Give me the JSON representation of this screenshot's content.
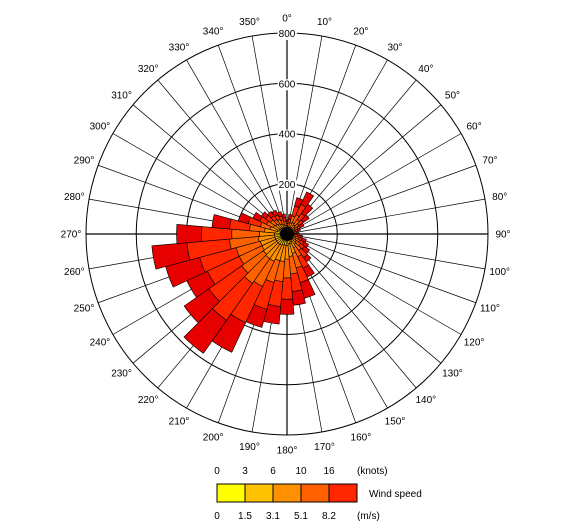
{
  "chart_data": {
    "type": "wind-rose",
    "direction_labels": [
      "0°",
      "10°",
      "20°",
      "30°",
      "40°",
      "50°",
      "60°",
      "70°",
      "80°",
      "90°",
      "100°",
      "110°",
      "120°",
      "130°",
      "140°",
      "150°",
      "160°",
      "170°",
      "180°",
      "190°",
      "200°",
      "210°",
      "220°",
      "230°",
      "240°",
      "250°",
      "260°",
      "270°",
      "280°",
      "290°",
      "300°",
      "310°",
      "320°",
      "330°",
      "340°",
      "350°"
    ],
    "radial_ticks": [
      200,
      400,
      600,
      800
    ],
    "radial_tick_labels": [
      "200",
      "400",
      "600",
      "800"
    ],
    "rmax": 800,
    "sector_width_deg": 10,
    "bin_colors": [
      "#ffff00",
      "#ffc200",
      "#ff9100",
      "#ff6000",
      "#ff2600",
      "#e60000"
    ],
    "sectors": [
      {
        "dir": 0,
        "cum": [
          12,
          22,
          34,
          42,
          50,
          56
        ]
      },
      {
        "dir": 10,
        "cum": [
          12,
          22,
          32,
          45,
          60,
          78
        ]
      },
      {
        "dir": 20,
        "cum": [
          14,
          28,
          45,
          75,
          115,
          150
        ]
      },
      {
        "dir": 30,
        "cum": [
          14,
          28,
          50,
          85,
          130,
          185
        ]
      },
      {
        "dir": 40,
        "cum": [
          14,
          28,
          45,
          70,
          100,
          145
        ]
      },
      {
        "dir": 50,
        "cum": [
          14,
          26,
          40,
          58,
          80,
          108
        ]
      },
      {
        "dir": 60,
        "cum": [
          12,
          22,
          34,
          48,
          60,
          75
        ]
      },
      {
        "dir": 70,
        "cum": [
          12,
          20,
          28,
          36,
          45,
          55
        ]
      },
      {
        "dir": 80,
        "cum": [
          10,
          18,
          25,
          32,
          38,
          45
        ]
      },
      {
        "dir": 90,
        "cum": [
          10,
          18,
          25,
          32,
          40,
          48
        ]
      },
      {
        "dir": 100,
        "cum": [
          12,
          22,
          32,
          42,
          52,
          62
        ]
      },
      {
        "dir": 110,
        "cum": [
          12,
          22,
          34,
          48,
          62,
          80
        ]
      },
      {
        "dir": 120,
        "cum": [
          14,
          26,
          40,
          56,
          75,
          95
        ]
      },
      {
        "dir": 130,
        "cum": [
          14,
          28,
          45,
          65,
          85,
          110
        ]
      },
      {
        "dir": 140,
        "cum": [
          14,
          28,
          50,
          80,
          115,
          135
        ]
      },
      {
        "dir": 150,
        "cum": [
          16,
          35,
          60,
          100,
          150,
          190
        ]
      },
      {
        "dir": 160,
        "cum": [
          16,
          40,
          80,
          140,
          200,
          265
        ]
      },
      {
        "dir": 170,
        "cum": [
          16,
          40,
          90,
          160,
          230,
          285
        ]
      },
      {
        "dir": 180,
        "cum": [
          18,
          45,
          100,
          175,
          260,
          320
        ]
      },
      {
        "dir": 190,
        "cum": [
          18,
          45,
          110,
          190,
          290,
          360
        ]
      },
      {
        "dir": 200,
        "cum": [
          18,
          45,
          110,
          200,
          310,
          385
        ]
      },
      {
        "dir": 210,
        "cum": [
          20,
          50,
          120,
          230,
          390,
          520
        ]
      },
      {
        "dir": 220,
        "cum": [
          20,
          50,
          120,
          240,
          420,
          580
        ]
      },
      {
        "dir": 230,
        "cum": [
          20,
          50,
          115,
          220,
          380,
          500
        ]
      },
      {
        "dir": 240,
        "cum": [
          20,
          50,
          110,
          210,
          350,
          440
        ]
      },
      {
        "dir": 250,
        "cum": [
          20,
          50,
          110,
          210,
          360,
          500
        ]
      },
      {
        "dir": 260,
        "cum": [
          20,
          50,
          115,
          230,
          400,
          540
        ]
      },
      {
        "dir": 270,
        "cum": [
          20,
          50,
          110,
          220,
          340,
          440
        ]
      },
      {
        "dir": 280,
        "cum": [
          18,
          45,
          90,
          150,
          230,
          300
        ]
      },
      {
        "dir": 290,
        "cum": [
          16,
          40,
          70,
          110,
          160,
          200
        ]
      },
      {
        "dir": 300,
        "cum": [
          16,
          35,
          60,
          90,
          120,
          150
        ]
      },
      {
        "dir": 310,
        "cum": [
          16,
          32,
          55,
          80,
          105,
          125
        ]
      },
      {
        "dir": 320,
        "cum": [
          14,
          30,
          50,
          70,
          90,
          110
        ]
      },
      {
        "dir": 330,
        "cum": [
          14,
          28,
          45,
          65,
          85,
          105
        ]
      },
      {
        "dir": 340,
        "cum": [
          14,
          26,
          40,
          58,
          75,
          92
        ]
      },
      {
        "dir": 350,
        "cum": [
          12,
          22,
          35,
          50,
          65,
          80
        ]
      }
    ],
    "legend": {
      "colors": [
        "#ffff00",
        "#ffc200",
        "#ff9100",
        "#ff6000",
        "#ff2600"
      ],
      "knots_ticks": [
        "0",
        "3",
        "6",
        "10",
        "16"
      ],
      "knots_unit": "(knots)",
      "ms_ticks": [
        "0",
        "1.5",
        "3.1",
        "5.1",
        "8.2"
      ],
      "ms_unit": "(m/s)",
      "title": "Wind speed"
    }
  }
}
